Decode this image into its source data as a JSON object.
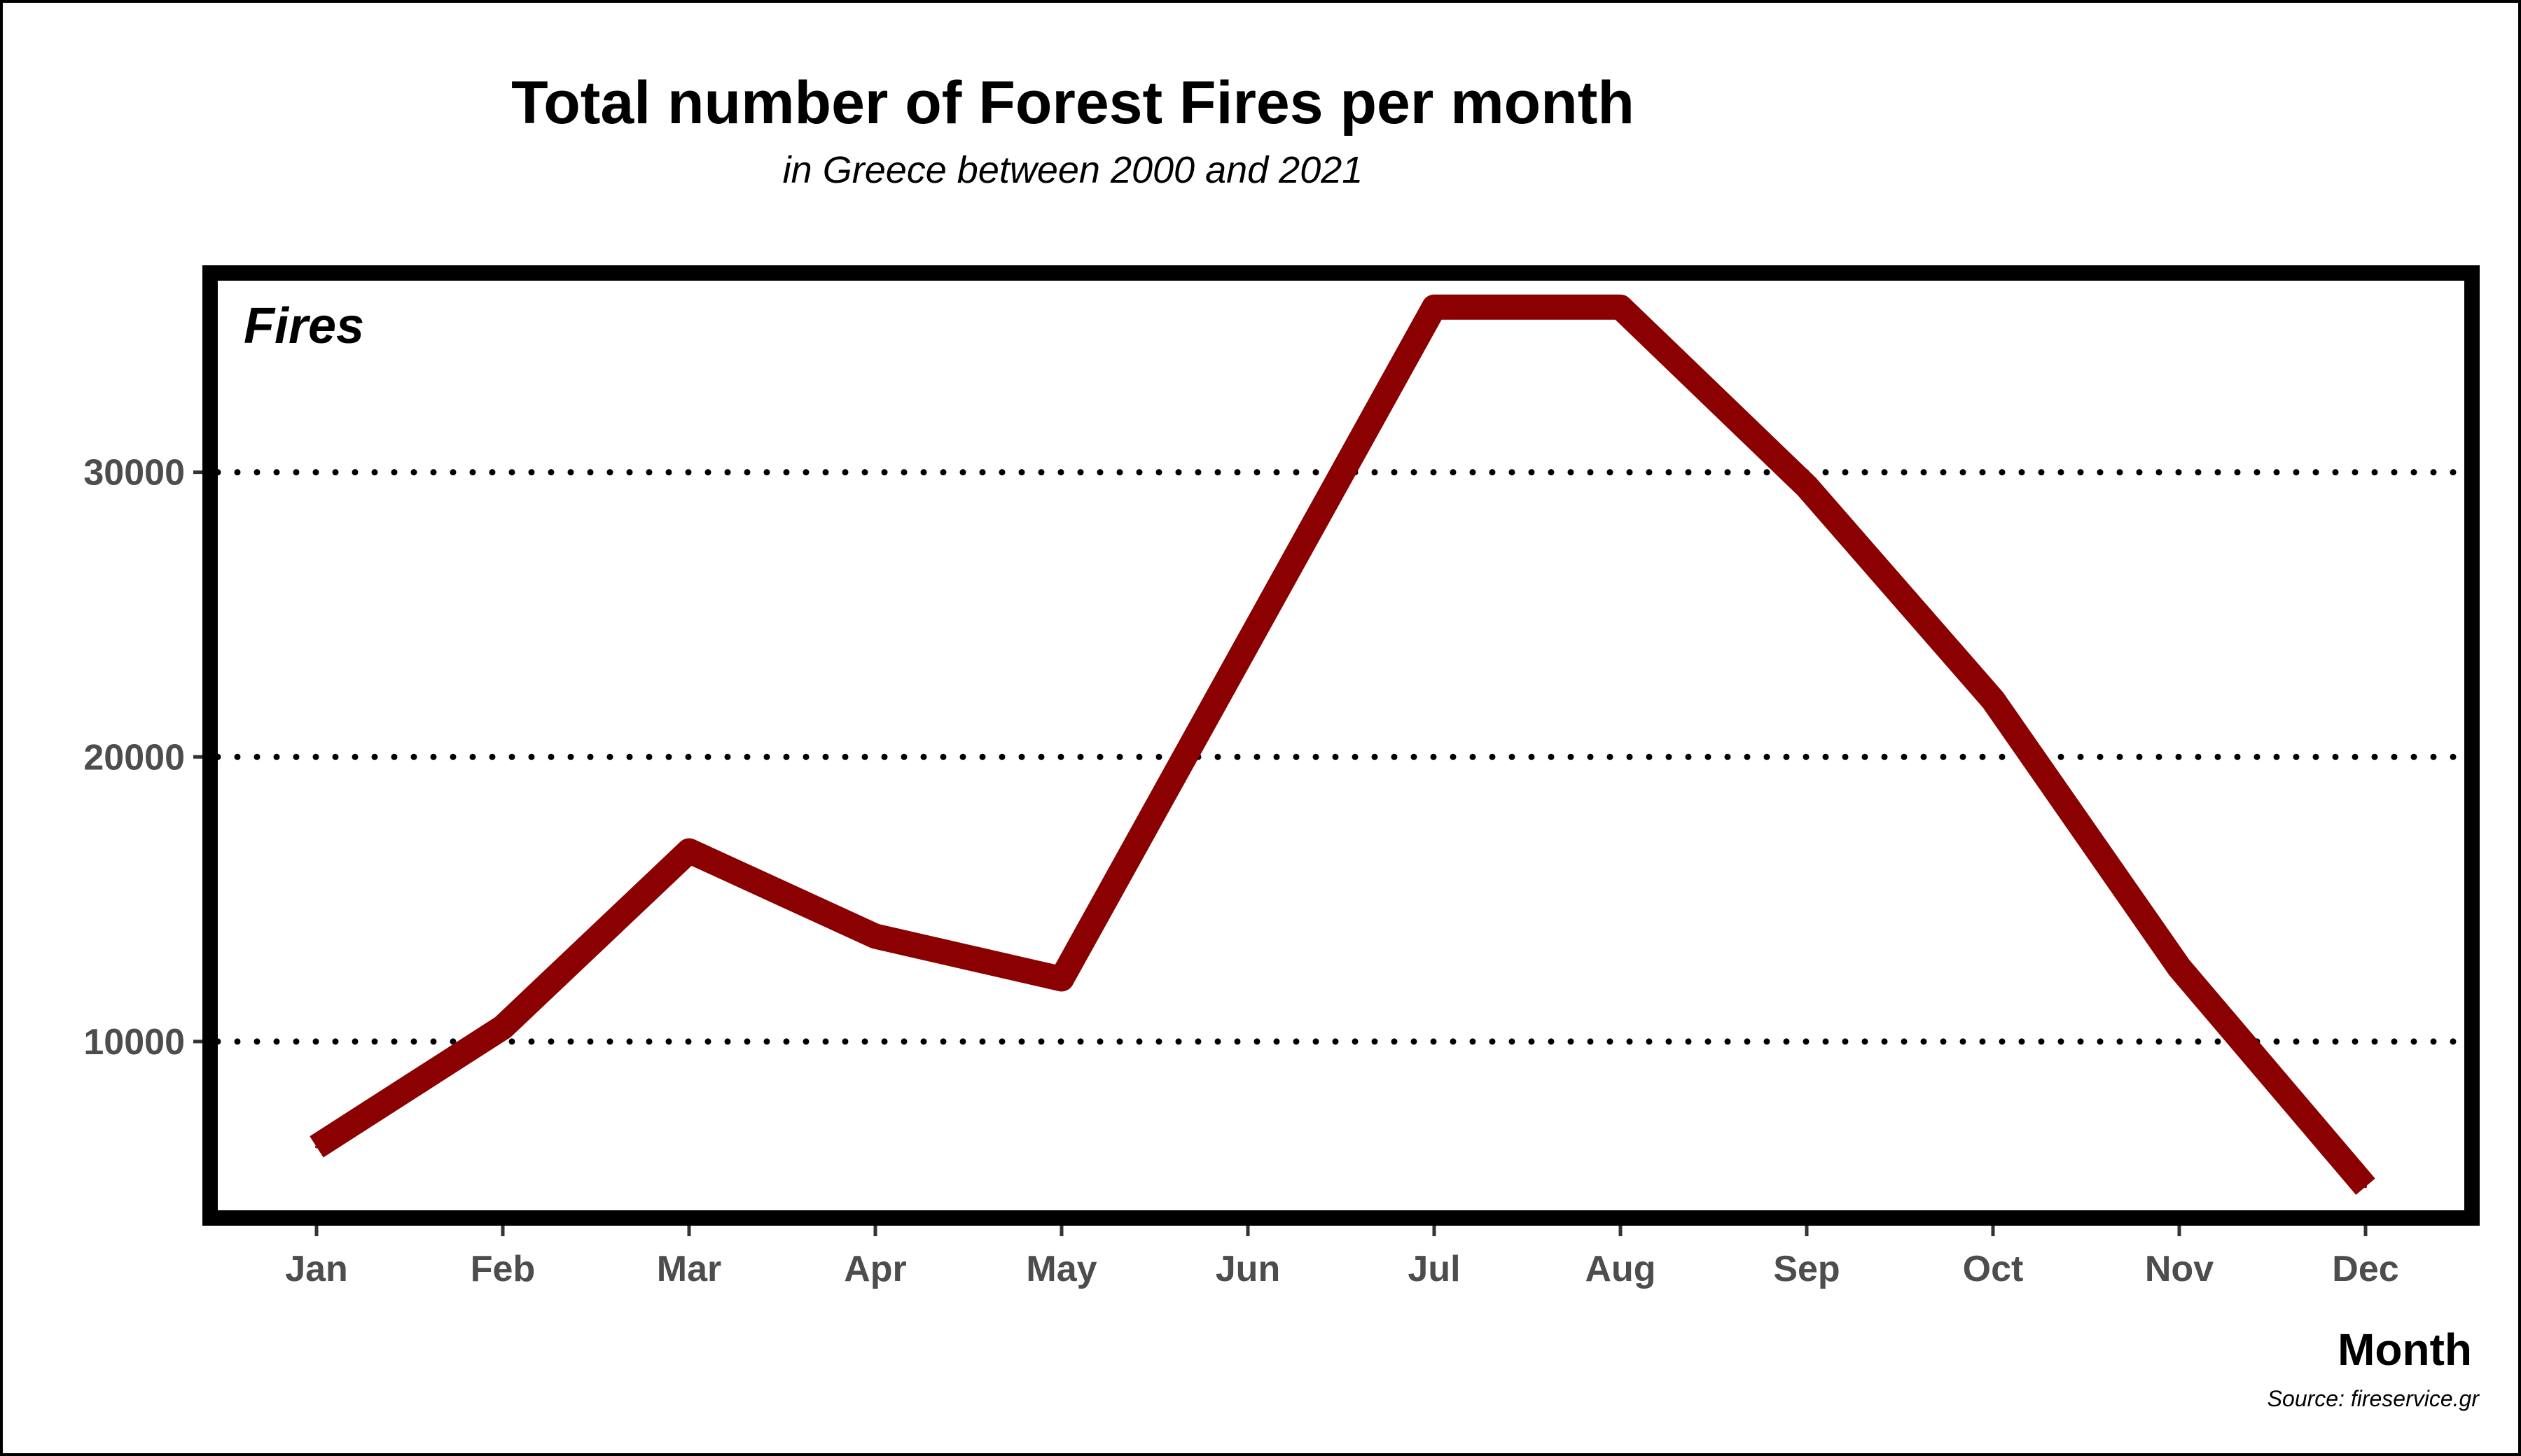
{
  "page": {
    "title": "Total number of Forest Fires per month",
    "subtitle": "in Greece between 2000 and 2021",
    "source": "Source: fireservice.gr"
  },
  "chart_data": {
    "type": "line",
    "title": "Total number of Forest Fires per month",
    "subtitle": "in Greece between 2000 and 2021",
    "xlabel": "Month",
    "ylabel": "Fires",
    "categories": [
      "Jan",
      "Feb",
      "Mar",
      "Apr",
      "May",
      "Jun",
      "Jul",
      "Aug",
      "Sep",
      "Oct",
      "Nov",
      "Dec"
    ],
    "series": [
      {
        "values": [
          6300,
          10500,
          16700,
          13700,
          12200,
          24000,
          35800,
          35800,
          29500,
          22000,
          12600,
          4900
        ]
      }
    ],
    "yticks": [
      10000,
      20000,
      30000
    ],
    "ylim": [
      3800,
      37000
    ],
    "grid": "horizontal dotted",
    "legend": "none",
    "colors": {
      "line": "#8b0000",
      "grid": "#000000",
      "panel_border": "#000000",
      "tick_text": "#4d4d4d"
    }
  }
}
